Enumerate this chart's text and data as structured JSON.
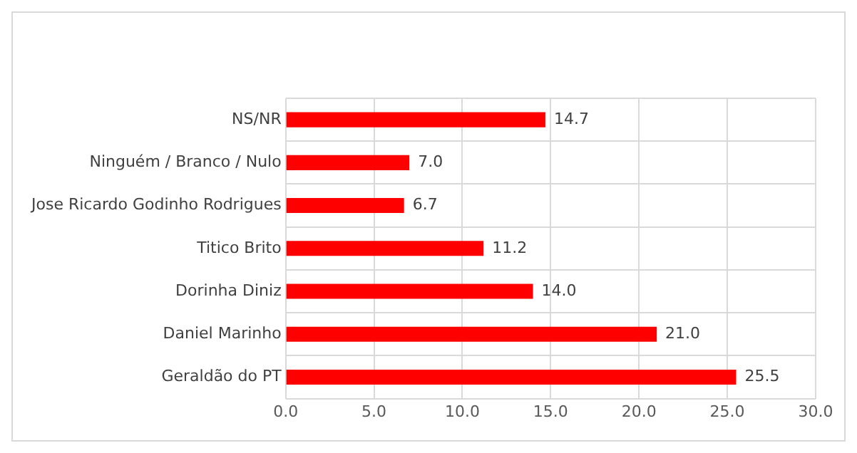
{
  "chart_data": {
    "type": "bar",
    "orientation": "horizontal",
    "categories": [
      "NS/NR",
      "Ninguém / Branco / Nulo",
      "Jose Ricardo Godinho Rodrigues",
      "Titico Brito",
      "Dorinha Diniz",
      "Daniel Marinho",
      "Geraldão do PT"
    ],
    "values": [
      14.7,
      7.0,
      6.7,
      11.2,
      14.0,
      21.0,
      25.5
    ],
    "value_labels": [
      "14.7",
      "7.0",
      "6.7",
      "11.2",
      "14.0",
      "21.0",
      "25.5"
    ],
    "color": "#ff0000",
    "xlim": [
      0,
      30
    ],
    "xticks": [
      {
        "value": 0,
        "label": "0.0"
      },
      {
        "value": 5,
        "label": "5.0"
      },
      {
        "value": 10,
        "label": "10.0"
      },
      {
        "value": 15,
        "label": "15.0"
      },
      {
        "value": 20,
        "label": "20.0"
      },
      {
        "value": 25,
        "label": "25.0"
      },
      {
        "value": 30,
        "label": "30.0"
      }
    ],
    "grid": true,
    "legend": false
  }
}
